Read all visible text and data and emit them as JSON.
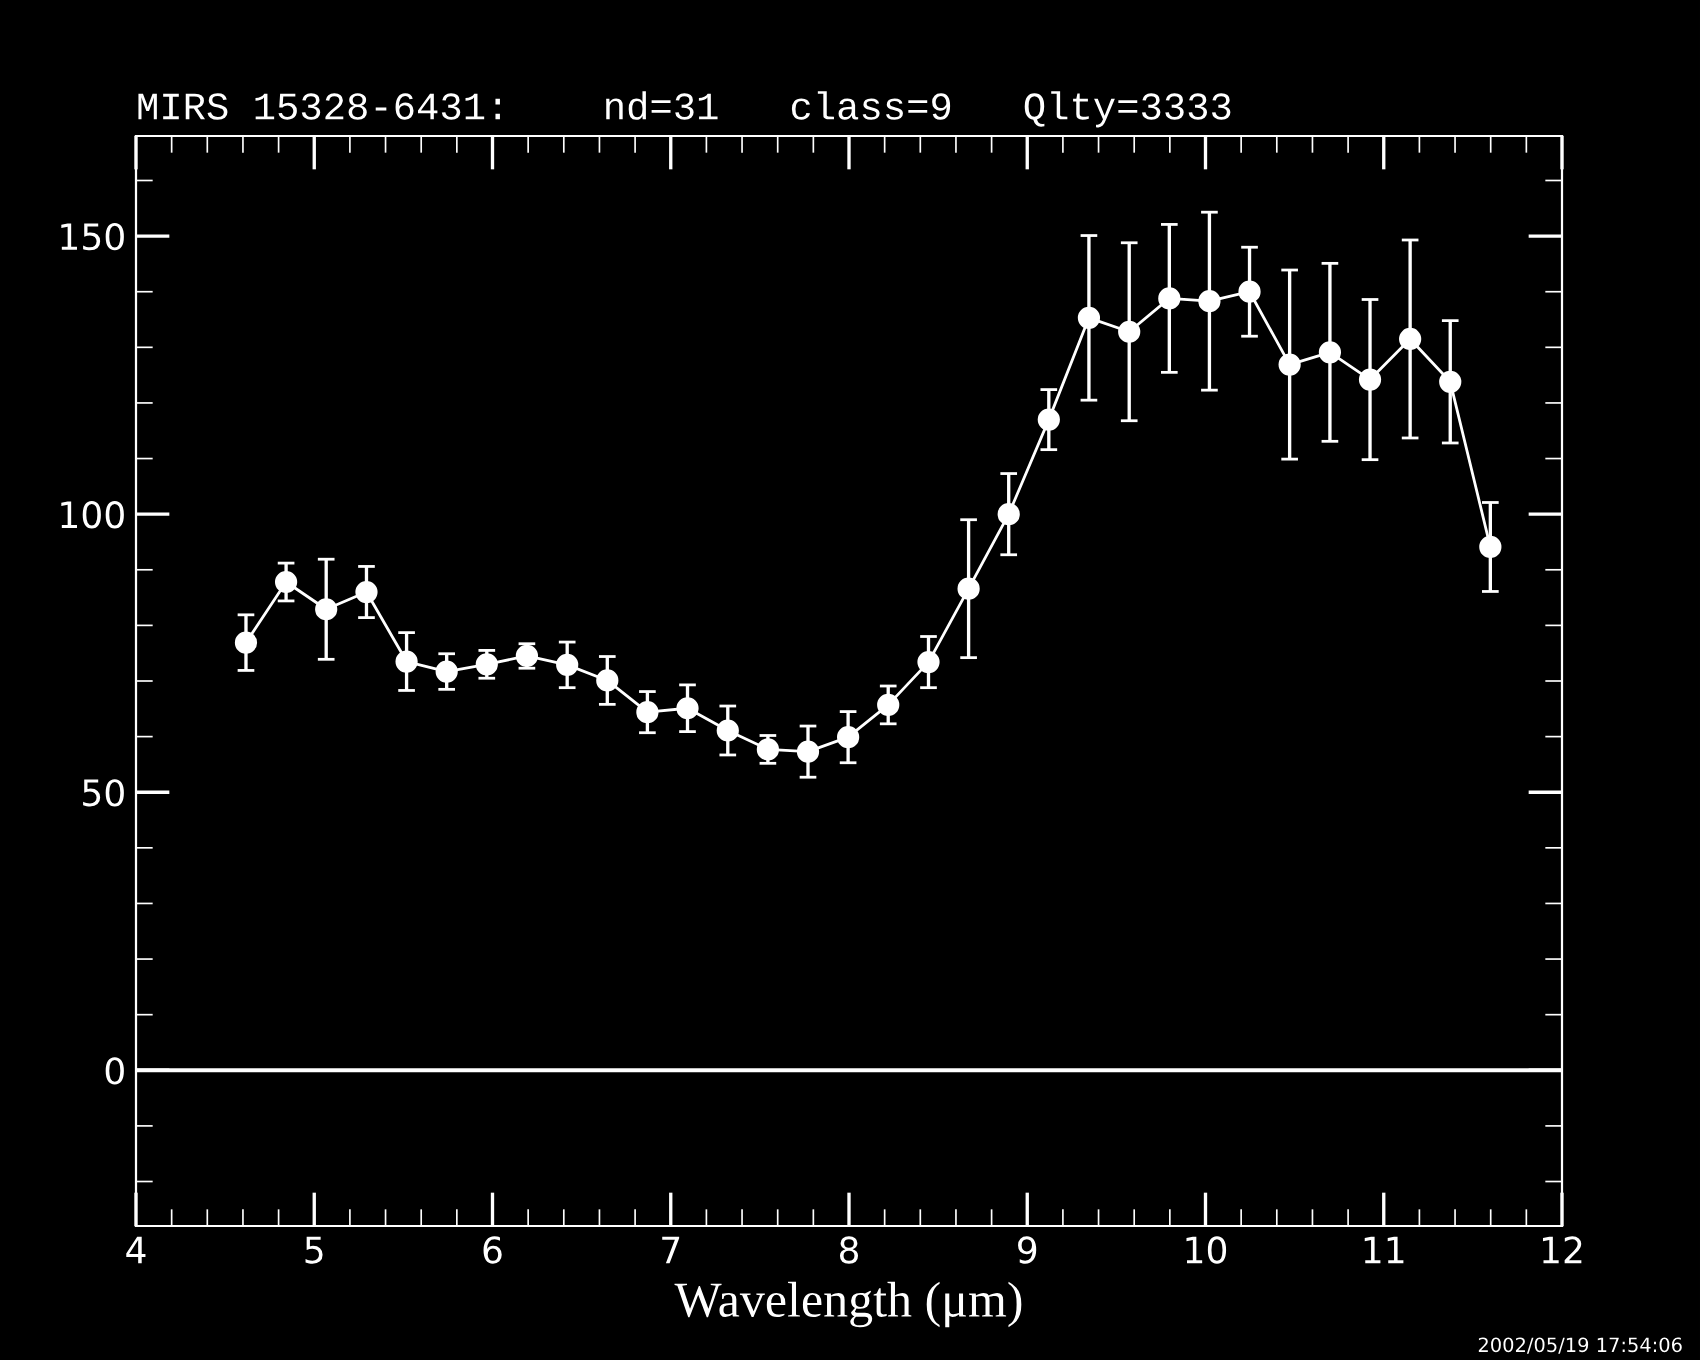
{
  "chart_data": {
    "type": "line",
    "title": "MIRS 15328-6431:    nd=31   class=9   Qlty=3333",
    "xlabel": "Wavelength (μm)",
    "x": [
      4.617,
      4.842,
      5.067,
      5.293,
      5.518,
      5.743,
      5.968,
      6.193,
      6.419,
      6.644,
      6.869,
      7.094,
      7.32,
      7.545,
      7.77,
      7.995,
      8.22,
      8.446,
      8.671,
      8.896,
      9.121,
      9.346,
      9.572,
      9.797,
      10.022,
      10.247,
      10.472,
      10.698,
      10.923,
      11.148,
      11.373,
      11.598
    ],
    "series": [
      {
        "color": "#ffffff",
        "values": [
          76.9,
          87.8,
          82.9,
          86.0,
          73.5,
          71.7,
          73.0,
          74.5,
          72.9,
          70.1,
          64.4,
          65.1,
          61.1,
          57.7,
          57.3,
          59.9,
          65.7,
          73.4,
          86.6,
          100.0,
          117.0,
          135.3,
          132.8,
          138.8,
          138.3,
          140.0,
          126.9,
          129.1,
          124.2,
          131.5,
          123.8,
          94.1
        ],
        "errors": [
          5,
          3.4,
          9,
          4.6,
          5.2,
          3.2,
          2.5,
          2.2,
          4.1,
          4.3,
          3.7,
          4.2,
          4.4,
          2.5,
          4.6,
          4.6,
          3.4,
          4.6,
          12.4,
          7.3,
          5.4,
          14.8,
          16,
          13.3,
          16,
          8,
          17,
          16,
          14.4,
          17.8,
          11,
          8
        ]
      }
    ],
    "marker": "circle",
    "line_style": "solid",
    "grid": false,
    "legend": false,
    "xlim": [
      4,
      12
    ],
    "ylim": [
      -28,
      168
    ],
    "xticks": [
      4,
      {
        "value": 4.2,
        "label": null
      },
      {
        "value": 4.4,
        "label": null
      },
      {
        "value": 4.6,
        "label": null
      },
      {
        "value": 4.8,
        "label": null
      },
      5,
      {
        "value": 5.2,
        "label": null
      },
      {
        "value": 5.4,
        "label": null
      },
      {
        "value": 5.6,
        "label": null
      },
      {
        "value": 5.8,
        "label": null
      },
      6,
      {
        "value": 6.2,
        "label": null
      },
      {
        "value": 6.4,
        "label": null
      },
      {
        "value": 6.6,
        "label": null
      },
      {
        "value": 6.8,
        "label": null
      },
      7,
      {
        "value": 7.2,
        "label": null
      },
      {
        "value": 7.4,
        "label": null
      },
      {
        "value": 7.6,
        "label": null
      },
      {
        "value": 7.8,
        "label": null
      },
      8,
      {
        "value": 8.2,
        "label": null
      },
      {
        "value": 8.4,
        "label": null
      },
      {
        "value": 8.6,
        "label": null
      },
      {
        "value": 8.8,
        "label": null
      },
      9,
      {
        "value": 9.2,
        "label": null
      },
      {
        "value": 9.4,
        "label": null
      },
      {
        "value": 9.6,
        "label": null
      },
      {
        "value": 9.8,
        "label": null
      },
      10,
      {
        "value": 10.2,
        "label": null
      },
      {
        "value": 10.4,
        "label": null
      },
      {
        "value": 10.6,
        "label": null
      },
      {
        "value": 10.8,
        "label": null
      },
      11,
      {
        "value": 11.2,
        "label": null
      },
      {
        "value": 11.4,
        "label": null
      },
      {
        "value": 11.6,
        "label": null
      },
      {
        "value": 11.8,
        "label": null
      },
      12
    ],
    "yticks": [
      {
        "value": -20,
        "label": null
      },
      {
        "value": -10,
        "label": null
      },
      0,
      {
        "value": 10,
        "label": null
      },
      {
        "value": 20,
        "label": null
      },
      {
        "value": 30,
        "label": null
      },
      {
        "value": 40,
        "label": null
      },
      50,
      {
        "value": 60,
        "label": null
      },
      {
        "value": 70,
        "label": null
      },
      {
        "value": 80,
        "label": null
      },
      {
        "value": 90,
        "label": null
      },
      100,
      {
        "value": 110,
        "label": null
      },
      {
        "value": 120,
        "label": null
      },
      {
        "value": 130,
        "label": null
      },
      {
        "value": 140,
        "label": null
      },
      150,
      {
        "value": 160,
        "label": null
      }
    ],
    "ref_lines": [
      {
        "axis": "y",
        "value": 0,
        "label": null,
        "color": "#ffffff",
        "line_style": "solid"
      }
    ],
    "annotations": [
      "2002/05/19 17:54:06"
    ]
  }
}
